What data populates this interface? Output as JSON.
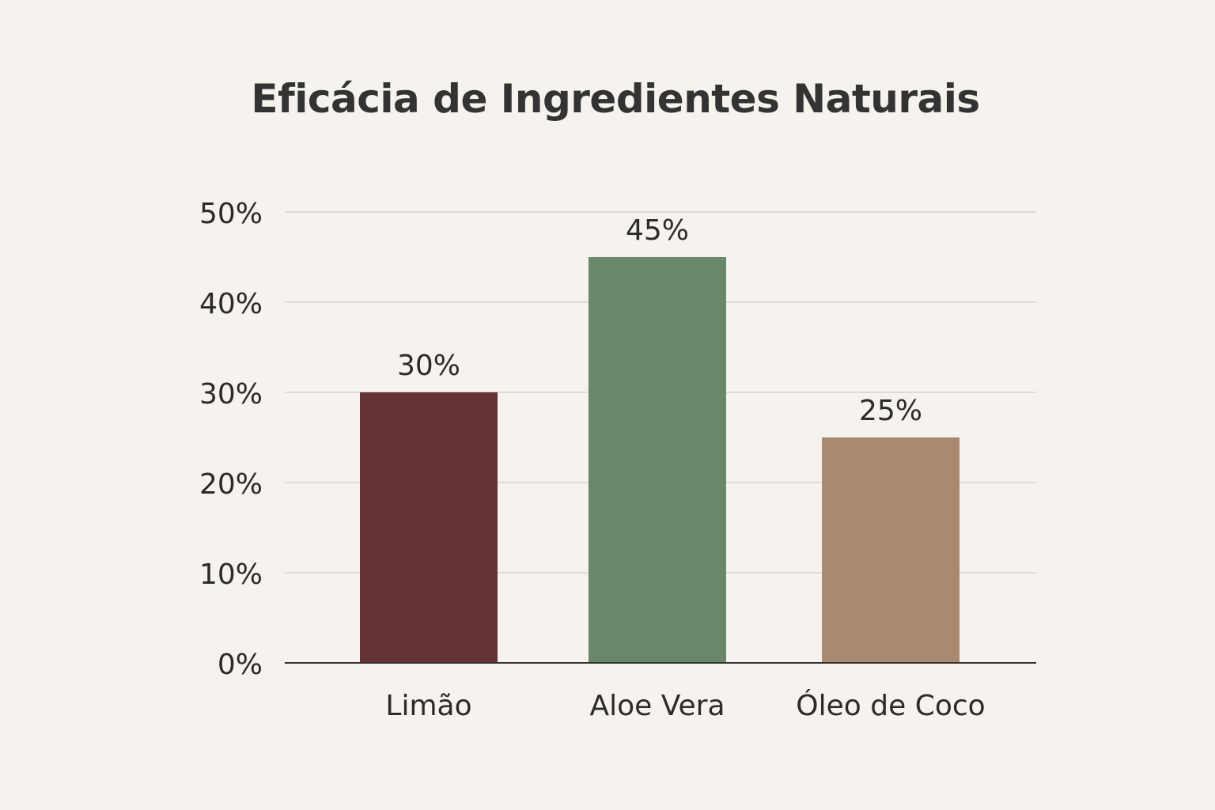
{
  "chart_data": {
    "type": "bar",
    "title": "Eficácia de Ingredientes Naturais",
    "xlabel": "",
    "ylabel": "",
    "categories": [
      "Limão",
      "Aloe Vera",
      "Óleo de Coco"
    ],
    "values": [
      30,
      45,
      25
    ],
    "value_labels": [
      "30%",
      "45%",
      "25%"
    ],
    "colors": [
      "#643335",
      "#69886a",
      "#a98a6e"
    ],
    "ylim": [
      0,
      50
    ],
    "yticks": [
      0,
      10,
      20,
      30,
      40,
      50
    ],
    "ytick_labels": [
      "0%",
      "10%",
      "20%",
      "30%",
      "40%",
      "50%"
    ],
    "grid": true,
    "legend": "none"
  }
}
